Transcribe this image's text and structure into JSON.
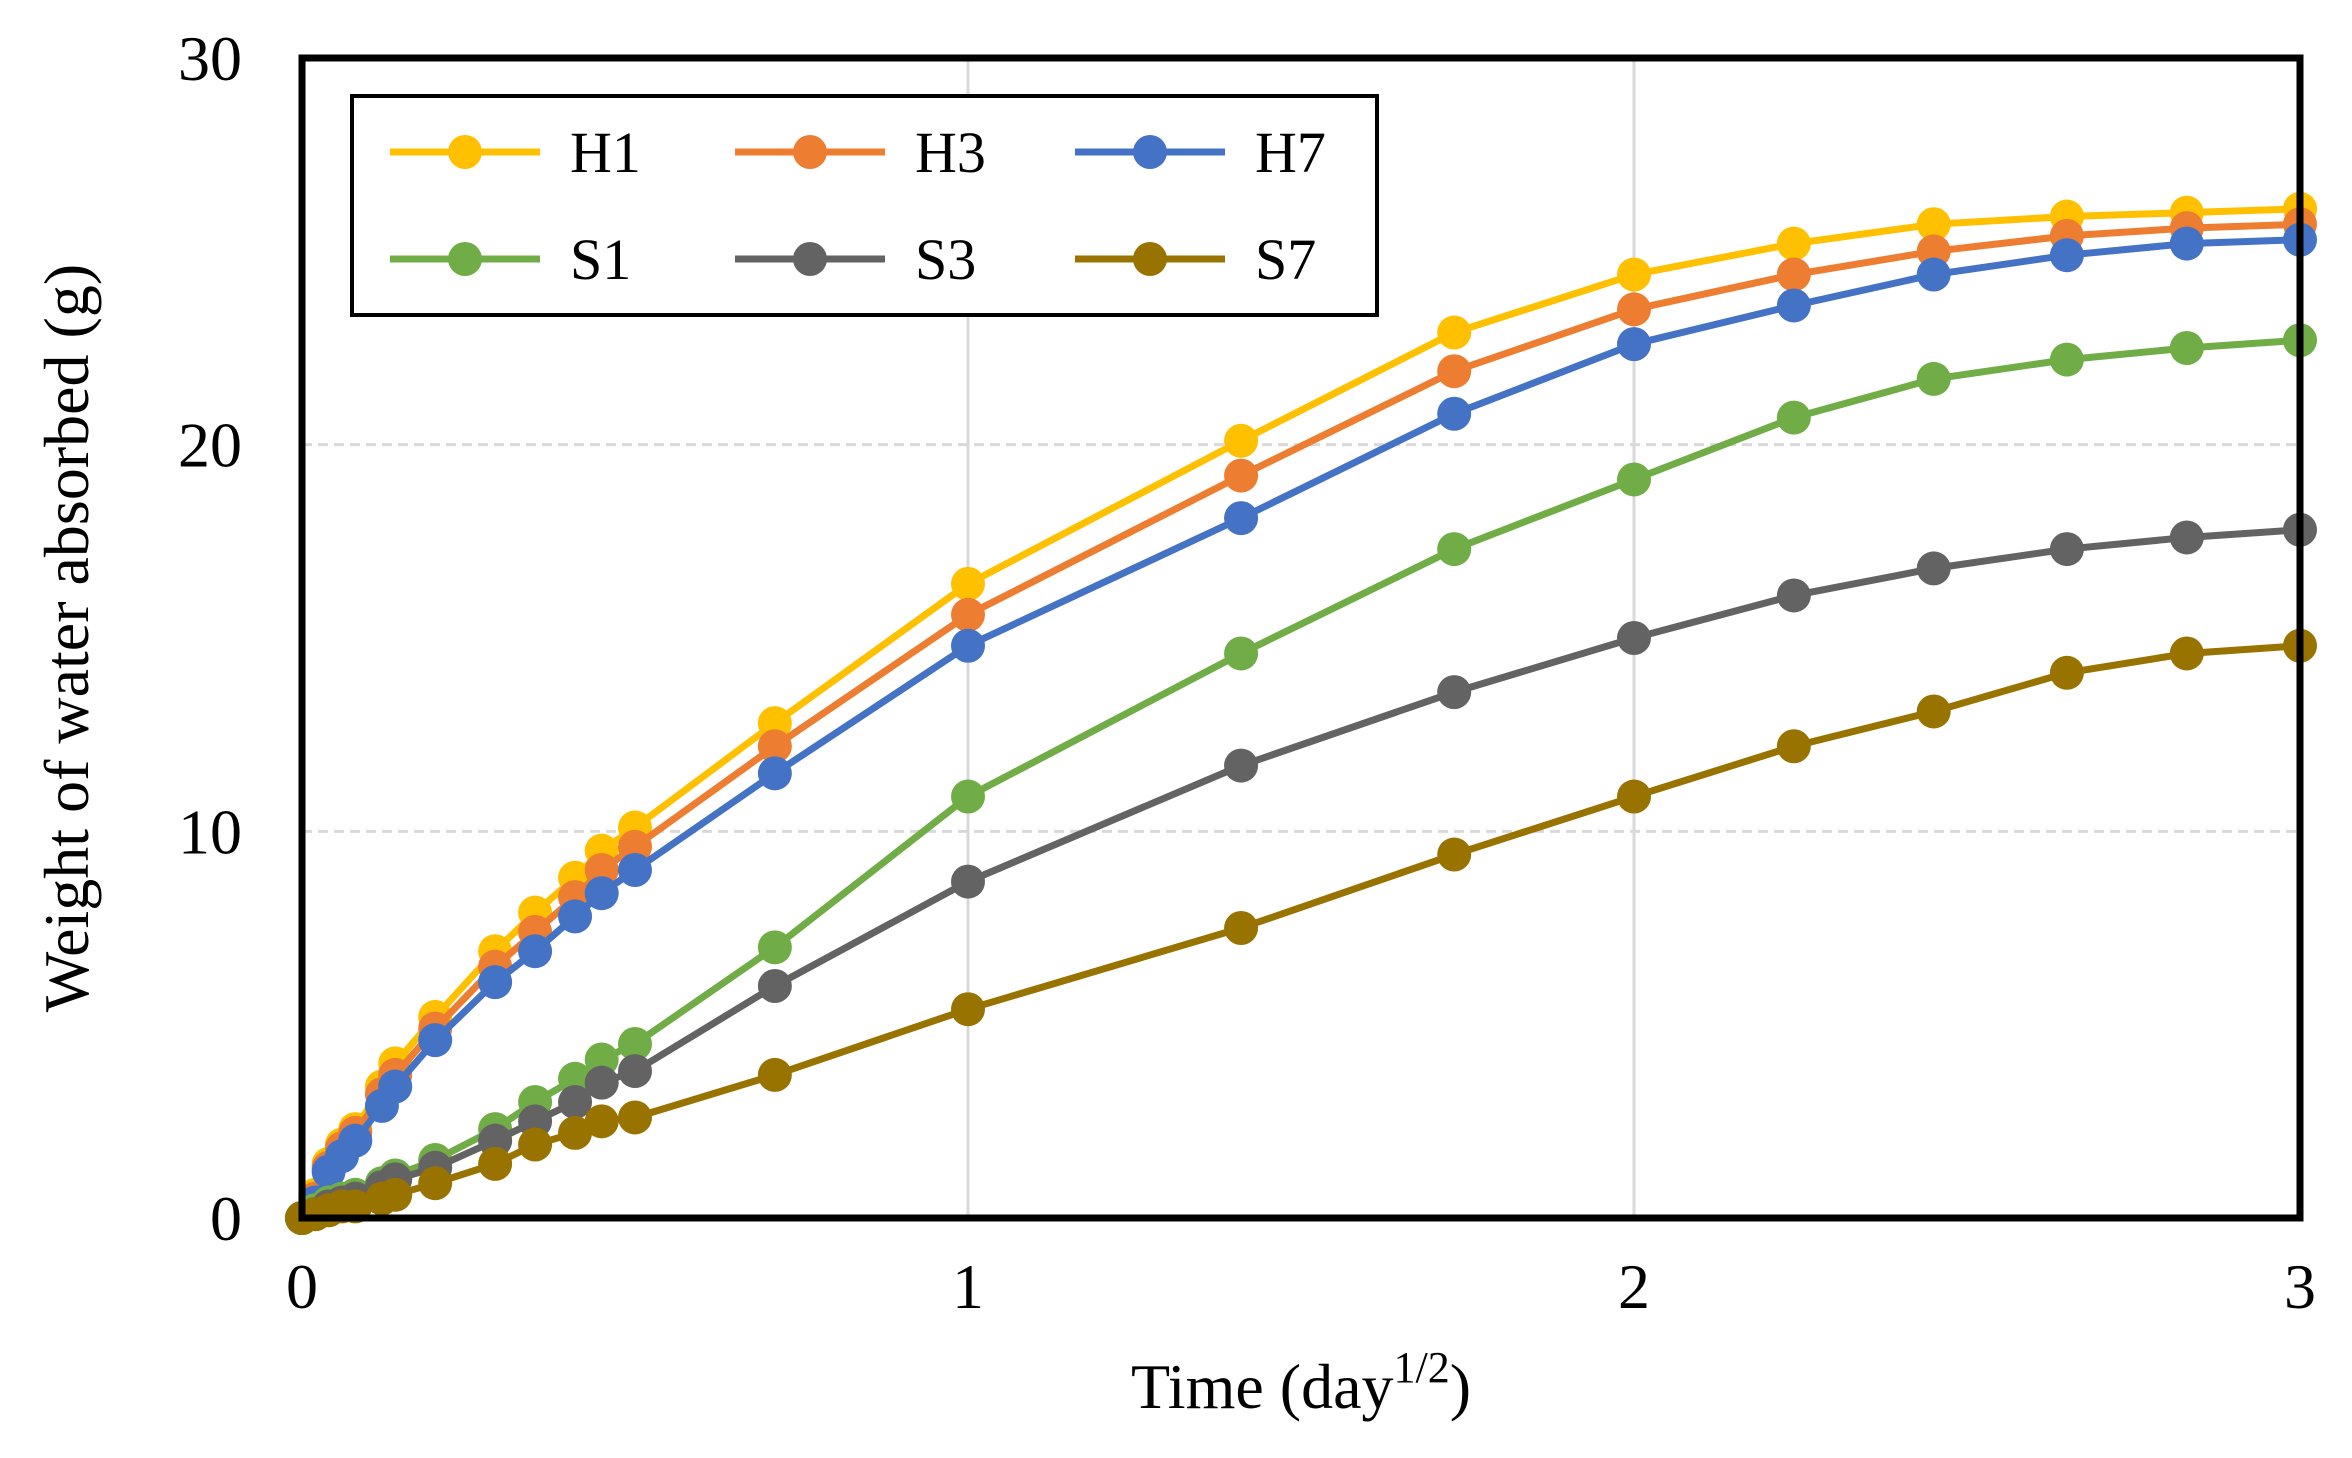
{
  "chart_data": {
    "type": "line",
    "title": "",
    "xlabel_main": "Time (day",
    "xlabel_sup": "1/2",
    "xlabel_close": ")",
    "ylabel": "Weight of water absorbed (g)",
    "xlim": [
      0,
      3
    ],
    "ylim": [
      0,
      30
    ],
    "x_ticks": [
      0,
      1,
      2,
      3
    ],
    "y_ticks": [
      0,
      10,
      20,
      30
    ],
    "x_tick_labels": [
      "0",
      "1",
      "2",
      "3"
    ],
    "y_tick_labels": [
      "0",
      "10",
      "20",
      "30"
    ],
    "grid": true,
    "legend_position": "top-left",
    "x": [
      0,
      0.02,
      0.04,
      0.06,
      0.08,
      0.12,
      0.14,
      0.2,
      0.29,
      0.35,
      0.41,
      0.45,
      0.5,
      0.71,
      1,
      1.41,
      1.73,
      2,
      2.24,
      2.45,
      2.65,
      2.83,
      3
    ],
    "series": [
      {
        "name": "H1",
        "color": "#FFC000",
        "values": [
          0,
          0.6,
          1.4,
          1.9,
          2.3,
          3.4,
          4.0,
          5.2,
          6.9,
          7.9,
          8.8,
          9.5,
          10.1,
          12.8,
          16.4,
          20.1,
          22.9,
          24.4,
          25.2,
          25.7,
          25.9,
          26.0,
          26.1
        ]
      },
      {
        "name": "H3",
        "color": "#ED7D31",
        "values": [
          0,
          0.5,
          1.3,
          1.8,
          2.2,
          3.2,
          3.7,
          4.9,
          6.5,
          7.4,
          8.3,
          9.0,
          9.6,
          12.2,
          15.6,
          19.2,
          21.9,
          23.5,
          24.4,
          25.0,
          25.4,
          25.6,
          25.7
        ]
      },
      {
        "name": "H7",
        "color": "#4472C4",
        "values": [
          0,
          0.4,
          1.2,
          1.6,
          2.0,
          2.9,
          3.4,
          4.6,
          6.1,
          6.9,
          7.8,
          8.4,
          9.0,
          11.5,
          14.8,
          18.1,
          20.8,
          22.6,
          23.6,
          24.4,
          24.9,
          25.2,
          25.3
        ]
      },
      {
        "name": "S1",
        "color": "#70AD47",
        "values": [
          0,
          0.2,
          0.4,
          0.5,
          0.6,
          0.9,
          1.1,
          1.5,
          2.3,
          3.0,
          3.6,
          4.1,
          4.5,
          7.0,
          10.9,
          14.6,
          17.3,
          19.1,
          20.7,
          21.7,
          22.2,
          22.5,
          22.7
        ]
      },
      {
        "name": "S3",
        "color": "#636363",
        "values": [
          0,
          0.1,
          0.3,
          0.4,
          0.5,
          0.8,
          1.0,
          1.3,
          2.0,
          2.5,
          3.0,
          3.5,
          3.8,
          6.0,
          8.7,
          11.7,
          13.6,
          15.0,
          16.1,
          16.8,
          17.3,
          17.6,
          17.8
        ]
      },
      {
        "name": "S7",
        "color": "#997300",
        "values": [
          0,
          0.1,
          0.2,
          0.3,
          0.3,
          0.5,
          0.6,
          0.9,
          1.4,
          1.9,
          2.2,
          2.5,
          2.6,
          3.7,
          5.4,
          7.5,
          9.4,
          10.9,
          12.2,
          13.1,
          14.1,
          14.6,
          14.8
        ]
      }
    ]
  }
}
